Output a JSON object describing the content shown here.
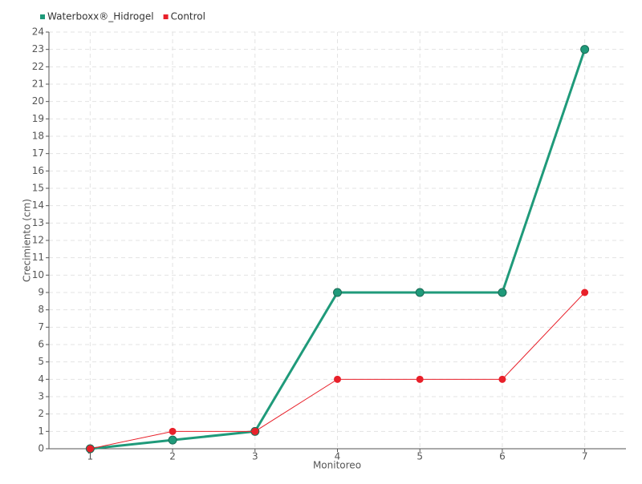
{
  "chart_data": {
    "type": "line",
    "x_label": "Monitoreo",
    "y_label": "Crecimiento (cm)",
    "categories": [
      "1",
      "2",
      "3",
      "4",
      "5",
      "6",
      "7"
    ],
    "series": [
      {
        "name": "Waterboxx®_Hidrogel",
        "color": "#1f9a7a",
        "values": [
          0,
          0.5,
          1,
          9,
          9,
          9,
          23
        ]
      },
      {
        "name": "Control",
        "color": "#e8202a",
        "values": [
          0,
          1,
          1,
          4,
          4,
          4,
          9
        ]
      }
    ],
    "ylim": [
      0,
      24
    ],
    "yticks": [
      0,
      1,
      2,
      3,
      4,
      5,
      6,
      7,
      8,
      9,
      10,
      11,
      12,
      13,
      14,
      15,
      16,
      17,
      18,
      19,
      20,
      21,
      22,
      23,
      24
    ],
    "grid": true,
    "legend": "top-left"
  }
}
